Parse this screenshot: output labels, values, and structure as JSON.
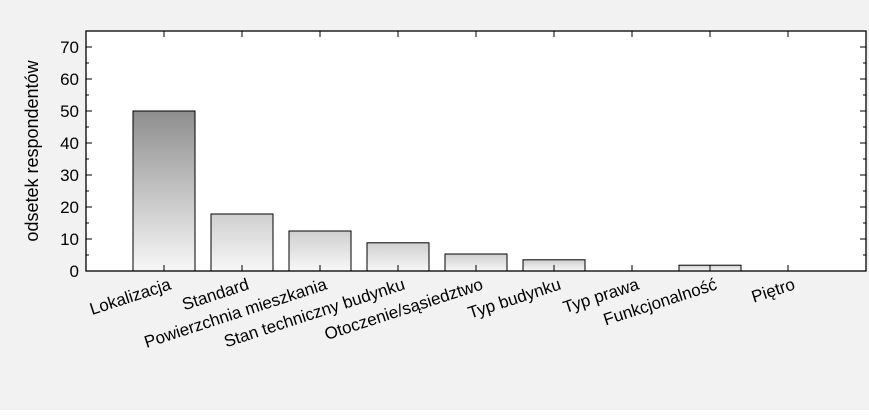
{
  "chart_data": {
    "type": "bar",
    "title": "",
    "xlabel": "",
    "ylabel": "odsetek respondentów",
    "ylim": [
      0,
      75
    ],
    "yticks": [
      0,
      10,
      20,
      30,
      40,
      50,
      60,
      70
    ],
    "grid": false,
    "legend": "none",
    "categories": [
      "Lokalizacja",
      "Standard",
      "Powierzchnia mieszkania",
      "Stan techniczny budynku",
      "Otoczenie/sąsiedztwo",
      "Typ budynku",
      "Typ prawa",
      "Funkcjonalność",
      "Piętro"
    ],
    "values": [
      50,
      17.8,
      12.5,
      8.8,
      5.3,
      3.5,
      0,
      1.8,
      0
    ],
    "colors": {
      "background": "#f2f2f2",
      "plot_area": "#ffffff",
      "bar_top_first": "#8e8e8e",
      "bar_top": "#cfcfcf",
      "bar_bottom": "#f7f7f7",
      "bar_stroke": "#000000"
    }
  }
}
